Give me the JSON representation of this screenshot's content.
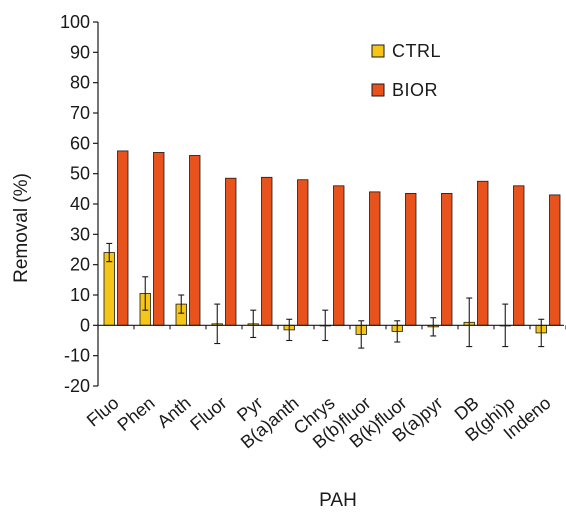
{
  "chart_data": {
    "type": "bar",
    "title": "",
    "xlabel": "PAH",
    "ylabel": "Removal (%)",
    "ylim": [
      -20,
      100
    ],
    "yticks": [
      -20,
      -10,
      0,
      10,
      20,
      30,
      40,
      50,
      60,
      70,
      80,
      90,
      100
    ],
    "grid": false,
    "legend_position": "top-right",
    "categories": [
      "Fluo",
      "Phen",
      "Anth",
      "Fluor",
      "Pyr",
      "B(a)anth",
      "Chrys",
      "B(b)fluor",
      "B(k)fluor",
      "B(a)pyr",
      "DB",
      "B(ghi)p",
      "Indeno"
    ],
    "series": [
      {
        "name": "CTRL",
        "color": "#f5c518",
        "values": [
          24,
          10.5,
          7,
          0.5,
          0.5,
          -1.5,
          0,
          -3,
          -2,
          -0.5,
          1,
          0,
          -2.5
        ],
        "errors": [
          3,
          5.5,
          3,
          6.5,
          4.5,
          3.5,
          5,
          4.5,
          3.5,
          3,
          8,
          7,
          4.5
        ]
      },
      {
        "name": "BIOR",
        "color": "#e8521c",
        "values": [
          57.5,
          57,
          56,
          48.5,
          48.8,
          48,
          46,
          44,
          43.5,
          43.5,
          47.5,
          46,
          43
        ],
        "errors": [
          0,
          0,
          0,
          0,
          0,
          0,
          0,
          0,
          0,
          0,
          0,
          0,
          0
        ]
      }
    ]
  }
}
